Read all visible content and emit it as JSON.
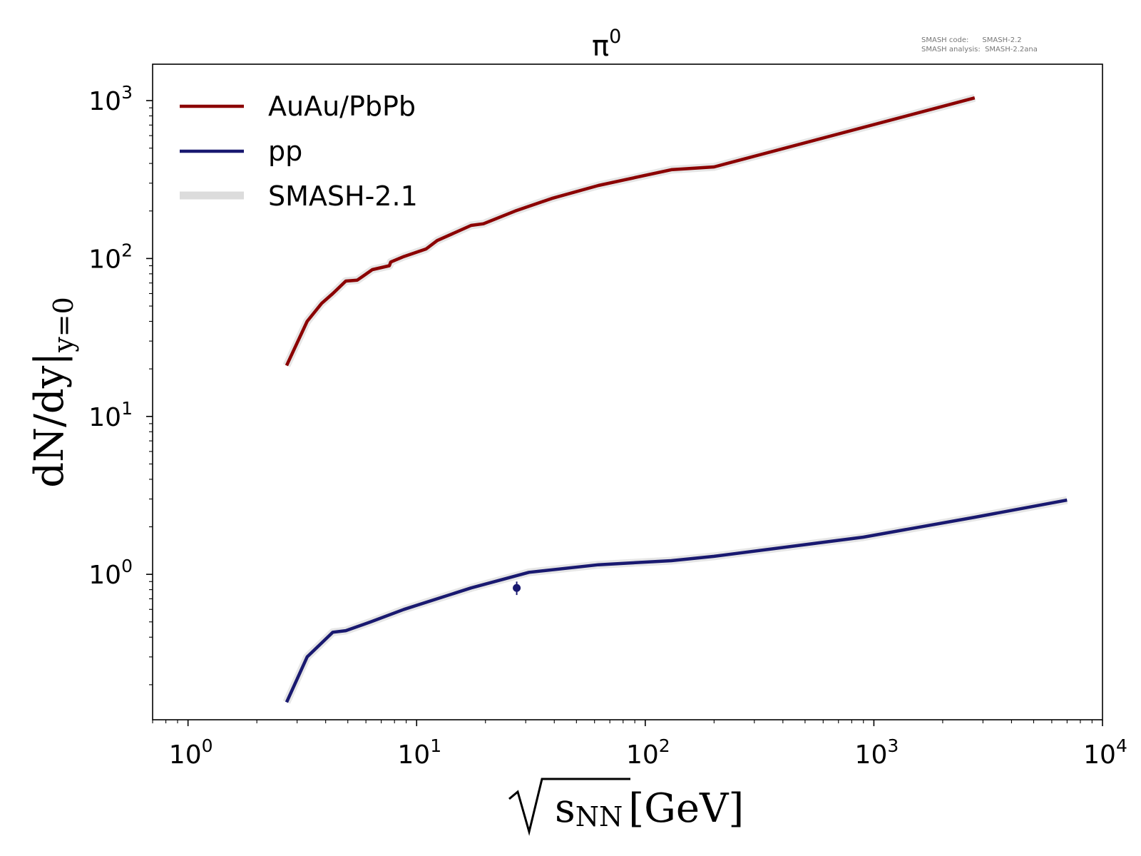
{
  "watermark": {
    "line1": "SMASH code:      SMASH-2.2",
    "line2": "SMASH analysis:  SMASH-2.2ana"
  },
  "chart_data": {
    "type": "line",
    "title": "π⁰",
    "title_base": "π",
    "title_sup": "0",
    "xlabel_sqrt_arg": "s",
    "xlabel_sub": "NN",
    "xlabel_unit": "[GeV]",
    "ylabel_main": "dN/dy|",
    "ylabel_sub": "y=0",
    "x_scale": "log",
    "y_scale": "log",
    "xlim": [
      0.7,
      10000
    ],
    "ylim": [
      0.12,
      1700
    ],
    "x_ticks": [
      {
        "base": "10",
        "exp": "0",
        "value": 1
      },
      {
        "base": "10",
        "exp": "1",
        "value": 10
      },
      {
        "base": "10",
        "exp": "2",
        "value": 100
      },
      {
        "base": "10",
        "exp": "3",
        "value": 1000
      },
      {
        "base": "10",
        "exp": "4",
        "value": 10000
      }
    ],
    "y_ticks": [
      {
        "base": "10",
        "exp": "0",
        "value": 1
      },
      {
        "base": "10",
        "exp": "1",
        "value": 10
      },
      {
        "base": "10",
        "exp": "2",
        "value": 100
      },
      {
        "base": "10",
        "exp": "3",
        "value": 1000
      }
    ],
    "grid": false,
    "legend_position": "top-left",
    "legend": [
      {
        "label": "AuAu/PbPb",
        "color": "#8b0000",
        "style": "line"
      },
      {
        "label": "pp",
        "color": "#191970",
        "style": "line"
      },
      {
        "label": "SMASH-2.1",
        "color": "#dcdcdc",
        "style": "band"
      }
    ],
    "series": [
      {
        "name": "AuAu/PbPb",
        "color": "#8b0000",
        "x": [
          2.7,
          3.32,
          3.84,
          4.3,
          4.9,
          5.5,
          6.4,
          7.6,
          7.7,
          8.8,
          11.0,
          12.3,
          17.3,
          19.6,
          27.0,
          39.0,
          62.4,
          130.0,
          200.0,
          2760.0
        ],
        "y": [
          21,
          40,
          52,
          60,
          72,
          73,
          85,
          90,
          95,
          103,
          115,
          130,
          162,
          166,
          200,
          240,
          290,
          365,
          380,
          1040
        ]
      },
      {
        "name": "pp",
        "color": "#191970",
        "x": [
          2.7,
          3.32,
          4.3,
          4.9,
          6.3,
          8.8,
          12.3,
          17.3,
          31.0,
          62.4,
          130.0,
          200.0,
          900.0,
          2760.0,
          7000.0
        ],
        "y": [
          0.155,
          0.3,
          0.43,
          0.44,
          0.5,
          0.6,
          0.7,
          0.82,
          1.03,
          1.15,
          1.22,
          1.3,
          1.72,
          2.3,
          2.95
        ]
      }
    ],
    "points": [
      {
        "series": "pp",
        "x": 27.4,
        "y": 0.82,
        "err_low": 0.08,
        "err_high": 0.08,
        "color": "#191970"
      }
    ]
  }
}
